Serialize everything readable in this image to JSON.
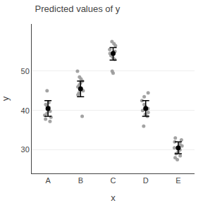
{
  "chart_data": {
    "type": "strip",
    "title": "Predicted values of y",
    "x_label": "x",
    "y_label": "y",
    "categories": [
      "A",
      "B",
      "C",
      "D",
      "E"
    ],
    "series": [
      {
        "type": "strip",
        "color": "#999999",
        "values": [
          [
            45.0,
            42.0,
            41.5,
            41.2,
            40.8,
            40.3,
            39.8,
            39.3,
            38.8,
            38.3,
            37.8,
            37.2
          ],
          [
            50.0,
            48.5,
            48.0,
            47.5,
            47.0,
            46.5,
            46.0,
            45.5,
            45.0,
            44.5,
            44.0,
            38.5
          ],
          [
            57.5,
            57.0,
            56.5,
            55.5,
            55.0,
            54.5,
            54.0,
            53.5,
            53.0,
            50.0,
            49.5
          ],
          [
            44.5,
            43.5,
            42.5,
            41.5,
            41.0,
            40.5,
            40.0,
            39.5,
            39.0,
            38.5,
            36.0
          ],
          [
            33.0,
            32.5,
            32.0,
            31.5,
            31.0,
            30.5,
            30.0,
            29.5,
            29.0,
            28.5,
            28.0,
            27.5
          ]
        ]
      },
      {
        "type": "mean_ci",
        "color": "#000000",
        "values": [
          40.5,
          45.5,
          54.5,
          40.5,
          30.5
        ],
        "ci_low": [
          38.5,
          43.5,
          52.8,
          38.5,
          29.0
        ],
        "ci_high": [
          42.5,
          47.5,
          56.0,
          42.5,
          32.0
        ]
      }
    ],
    "ylim": [
      24,
      62
    ],
    "yticks": [
      30,
      40,
      50
    ],
    "grid": true
  }
}
